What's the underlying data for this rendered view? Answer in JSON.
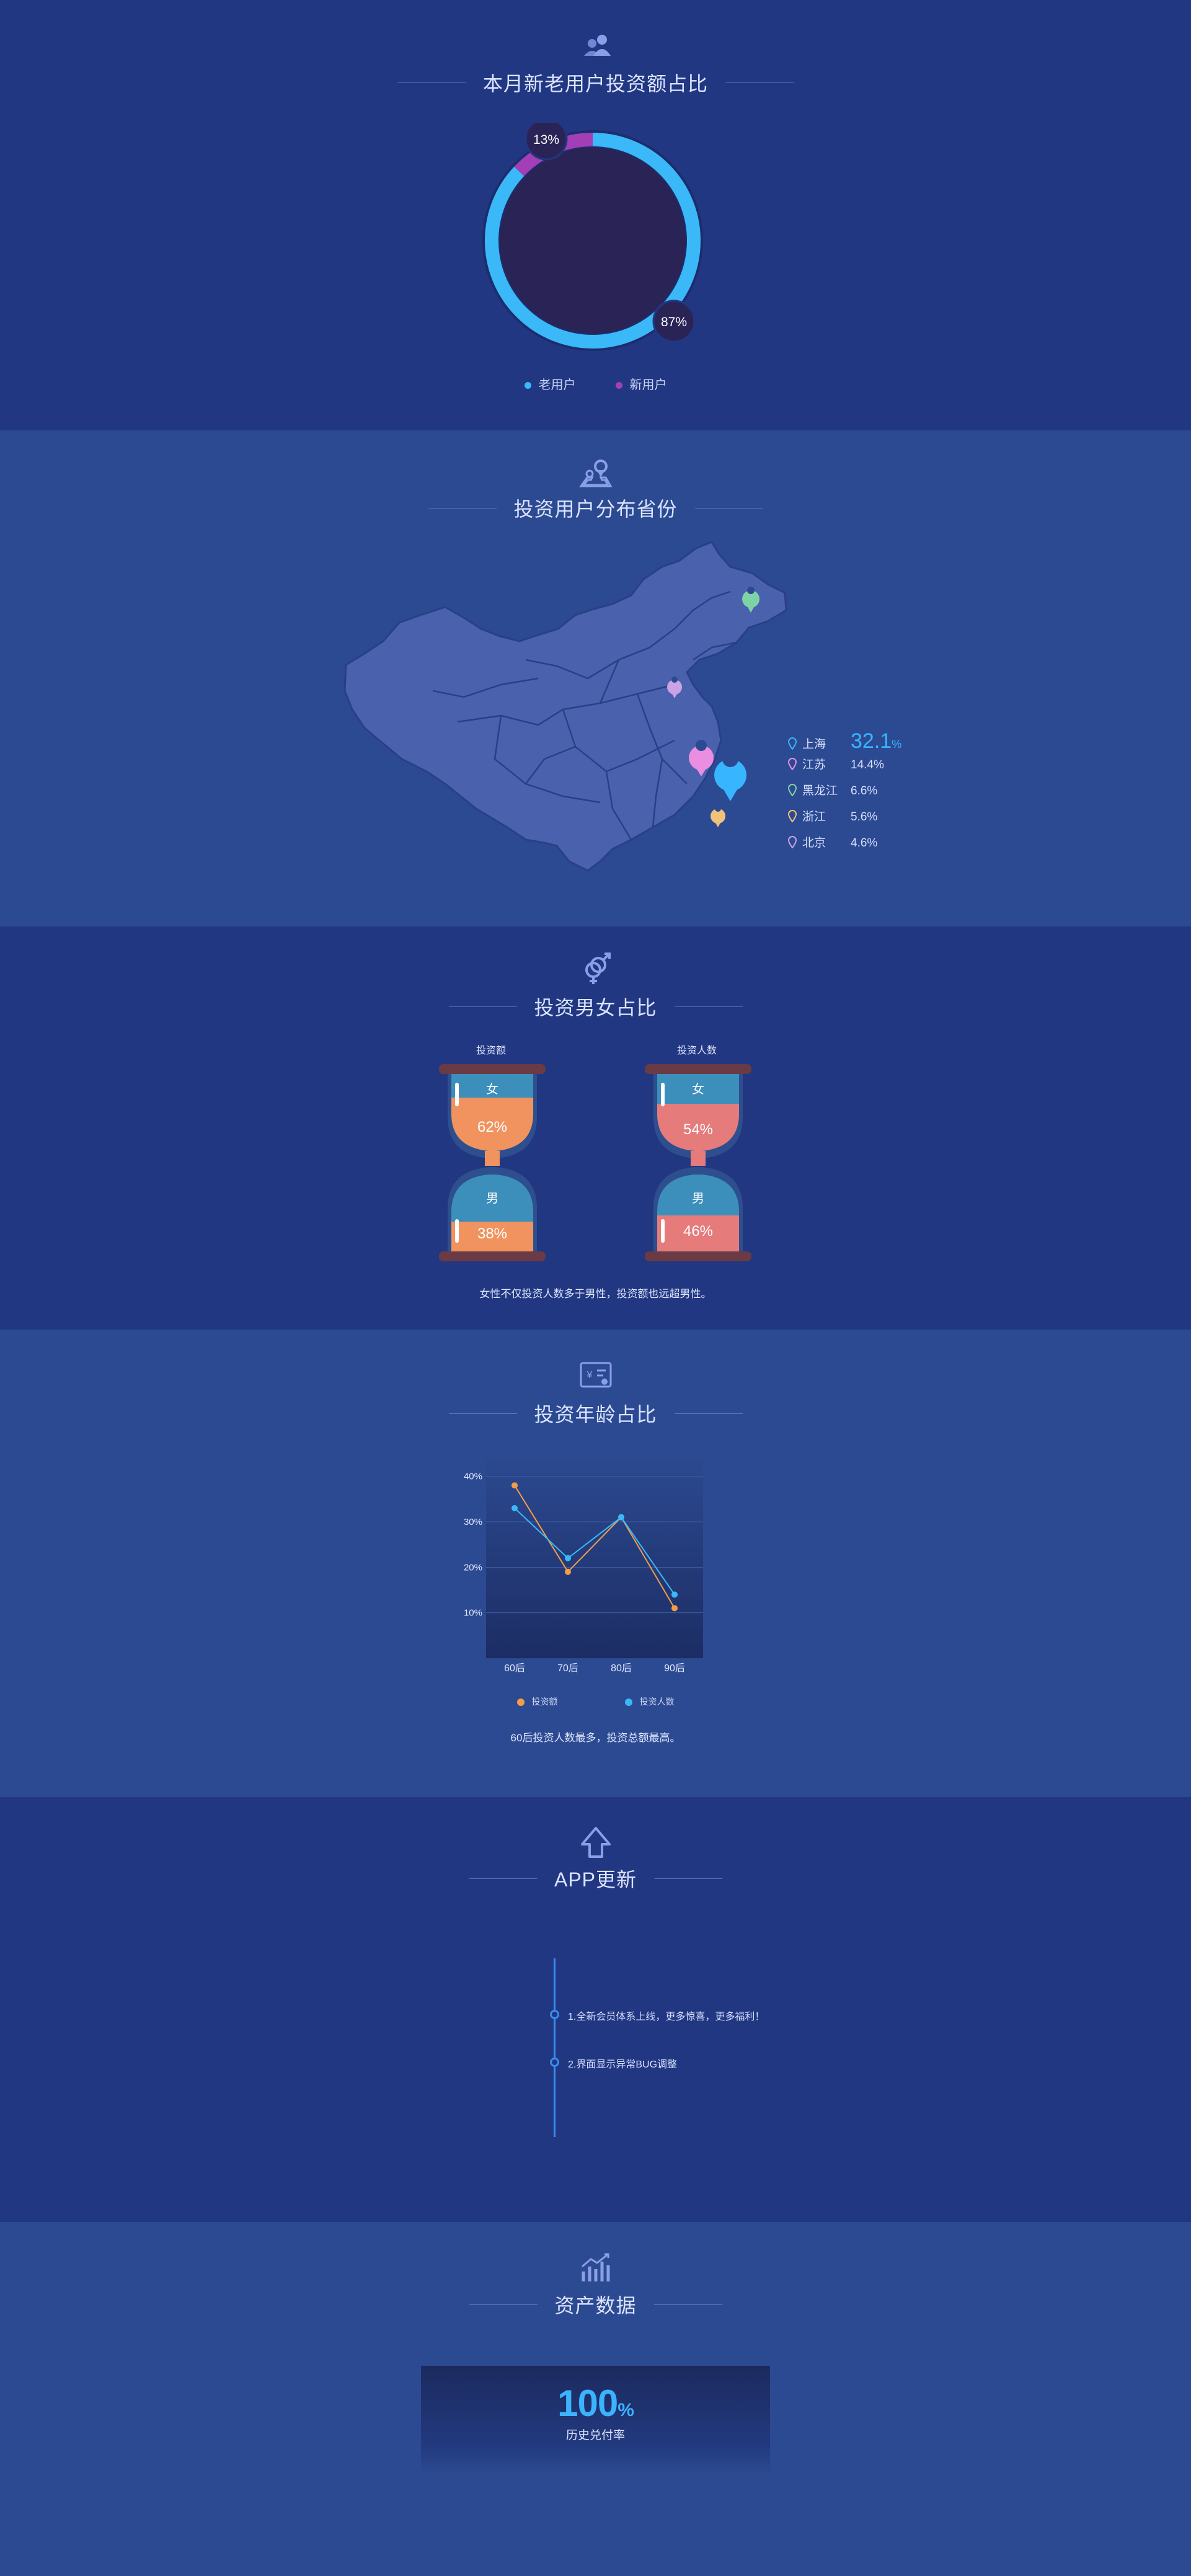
{
  "colors": {
    "old_user": "#3ab8f8",
    "new_user": "#a23fb6",
    "female_invest": "#f0935e",
    "female_people": "#e67b7b",
    "accent": "#37b5ff"
  },
  "section1": {
    "icon": "users-icon",
    "title": "本月新老用户投资额占比",
    "donut": {
      "old_pct_value": 87,
      "new_pct_value": 13,
      "old_label": "87%",
      "new_label": "13%"
    },
    "legend_old": "老用户",
    "legend_new": "新用户"
  },
  "section2": {
    "icon": "map-pin-icon",
    "title": "投资用户分布省份",
    "provinces": [
      {
        "name": "上海",
        "pct": "32.1",
        "unit": "%",
        "color": "#37b5ff"
      },
      {
        "name": "江苏",
        "pct": "14.4%",
        "color": "#e98ee0"
      },
      {
        "name": "黑龙江",
        "pct": "6.6%",
        "color": "#7ed3a6"
      },
      {
        "name": "浙江",
        "pct": "5.6%",
        "color": "#f0c27a"
      },
      {
        "name": "北京",
        "pct": "4.6%",
        "color": "#c9a3e6"
      }
    ]
  },
  "section3": {
    "icon": "gender-icon",
    "title": "投资男女占比",
    "amount_label": "投资额",
    "people_label": "投资人数",
    "female": "女",
    "male": "男",
    "amount_female": "62%",
    "amount_male": "38%",
    "people_female": "54%",
    "people_male": "46%",
    "amount_female_value": 62,
    "amount_male_value": 38,
    "people_female_value": 54,
    "people_male_value": 46,
    "caption": "女性不仅投资人数多于男性，投资额也远超男性。"
  },
  "section4": {
    "icon": "id-card-icon",
    "title": "投资年龄占比",
    "caption": "60后投资人数最多，投资总额最高。"
  },
  "chart_data": {
    "type": "line",
    "categories": [
      "60后",
      "70后",
      "80后",
      "90后"
    ],
    "series": [
      {
        "name": "投资额",
        "values": [
          38,
          19,
          31,
          11
        ],
        "color": "#f49c4a"
      },
      {
        "name": "投资人数",
        "values": [
          33,
          22,
          31,
          14
        ],
        "color": "#3ab8f8"
      }
    ],
    "yticks": [
      "10%",
      "20%",
      "30%",
      "40%"
    ],
    "ytick_values": [
      10,
      20,
      30,
      40
    ],
    "ylim": [
      0,
      45
    ]
  },
  "section5": {
    "icon": "arrow-up-icon",
    "title": "APP更新",
    "items": [
      "1.全新会员体系上线，更多惊喜，更多福利！",
      "2.界面显示异常BUG调整"
    ]
  },
  "section6": {
    "icon": "bar-chart-icon",
    "title": "资产数据",
    "value": "100",
    "unit": "%",
    "label": "历史兑付率"
  }
}
